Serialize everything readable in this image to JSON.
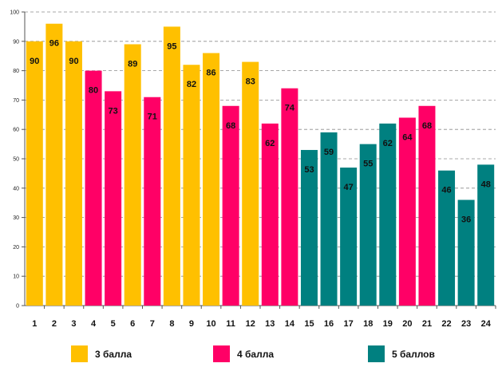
{
  "chart_data": {
    "type": "bar",
    "title": "",
    "xlabel": "",
    "ylabel": "",
    "ylim": [
      0,
      100
    ],
    "ytick_step": 10,
    "grid": "horizontal-dashed",
    "legend_placement": "bottom",
    "categories": [
      "1",
      "2",
      "3",
      "4",
      "5",
      "6",
      "7",
      "8",
      "9",
      "10",
      "11",
      "12",
      "13",
      "14",
      "15",
      "16",
      "17",
      "18",
      "19",
      "20",
      "21",
      "22",
      "23",
      "24"
    ],
    "values": [
      90,
      96,
      90,
      80,
      73,
      89,
      71,
      95,
      82,
      86,
      68,
      83,
      62,
      74,
      53,
      59,
      47,
      55,
      62,
      64,
      68,
      46,
      36,
      48
    ],
    "groups": [
      0,
      0,
      0,
      1,
      1,
      0,
      1,
      0,
      0,
      0,
      1,
      0,
      1,
      1,
      2,
      2,
      2,
      2,
      2,
      1,
      1,
      2,
      2,
      2
    ],
    "series": [
      {
        "name": "3 балла",
        "color": "#FFC000"
      },
      {
        "name": "4 балла",
        "color": "#FF0066"
      },
      {
        "name": "5 баллов",
        "color": "#008080"
      }
    ]
  }
}
